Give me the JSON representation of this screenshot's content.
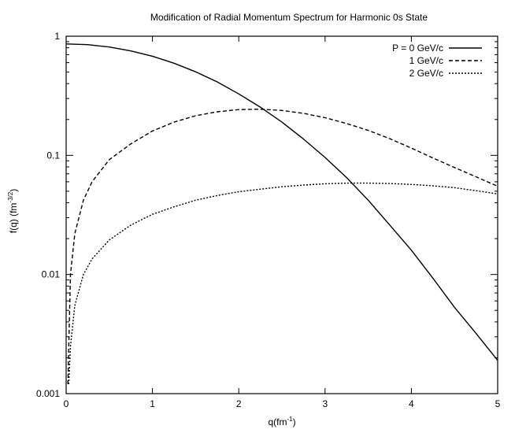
{
  "chart_data": {
    "type": "line",
    "title": "Modification of Radial Momentum Spectrum for Harmonic 0s State",
    "xlabel": {
      "base": "q(fm",
      "sup": "-1",
      "tail": ")"
    },
    "ylabel": {
      "base": "f(q)  (fm",
      "sup": "-3/2",
      "tail": ")"
    },
    "x_scale": "linear",
    "y_scale": "log",
    "xlim": [
      0,
      5
    ],
    "ylim": [
      0.001,
      1
    ],
    "x_ticks": [
      0,
      1,
      2,
      3,
      4,
      5
    ],
    "x_tick_labels": [
      "0",
      "1",
      "2",
      "3",
      "4",
      "5"
    ],
    "y_ticks": [
      0.001,
      0.01,
      0.1,
      1
    ],
    "y_tick_labels": [
      "0.001",
      "0.01",
      "0.1",
      "1"
    ],
    "grid": false,
    "legend_position": "top-right",
    "series": [
      {
        "name": "P = 0 GeV/c",
        "style": "solid",
        "color": "#000000",
        "x": [
          0,
          0.25,
          0.5,
          0.75,
          1.0,
          1.25,
          1.5,
          1.75,
          2.0,
          2.25,
          2.5,
          2.75,
          3.0,
          3.25,
          3.5,
          3.75,
          4.0,
          4.25,
          4.5,
          4.75,
          5.0
        ],
        "y": [
          0.862,
          0.85,
          0.812,
          0.752,
          0.679,
          0.593,
          0.503,
          0.414,
          0.328,
          0.254,
          0.19,
          0.137,
          0.096,
          0.065,
          0.042,
          0.026,
          0.016,
          0.0093,
          0.0053,
          0.0032,
          0.0019
        ]
      },
      {
        "name": "1 GeV/c",
        "style": "dashed",
        "color": "#000000",
        "x": [
          0.02,
          0.05,
          0.1,
          0.2,
          0.3,
          0.5,
          0.75,
          1.0,
          1.25,
          1.5,
          1.75,
          2.0,
          2.25,
          2.5,
          2.75,
          3.0,
          3.25,
          3.5,
          3.75,
          4.0,
          4.25,
          4.5,
          4.75,
          5.0
        ],
        "y": [
          0.0012,
          0.01,
          0.022,
          0.042,
          0.06,
          0.092,
          0.125,
          0.16,
          0.19,
          0.215,
          0.232,
          0.242,
          0.244,
          0.238,
          0.225,
          0.207,
          0.185,
          0.162,
          0.138,
          0.115,
          0.095,
          0.079,
          0.066,
          0.055
        ]
      },
      {
        "name": "2 GeV/c",
        "style": "dotted",
        "color": "#000000",
        "x": [
          0.03,
          0.05,
          0.1,
          0.2,
          0.3,
          0.5,
          0.75,
          1.0,
          1.25,
          1.5,
          1.75,
          2.0,
          2.25,
          2.5,
          2.75,
          3.0,
          3.25,
          3.5,
          3.75,
          4.0,
          4.25,
          4.5,
          4.75,
          5.0
        ],
        "y": [
          0.0012,
          0.0025,
          0.0055,
          0.01,
          0.0135,
          0.0195,
          0.026,
          0.032,
          0.037,
          0.042,
          0.046,
          0.0495,
          0.052,
          0.0545,
          0.0563,
          0.0578,
          0.0585,
          0.0585,
          0.058,
          0.057,
          0.0555,
          0.0535,
          0.0505,
          0.0475
        ]
      }
    ]
  }
}
